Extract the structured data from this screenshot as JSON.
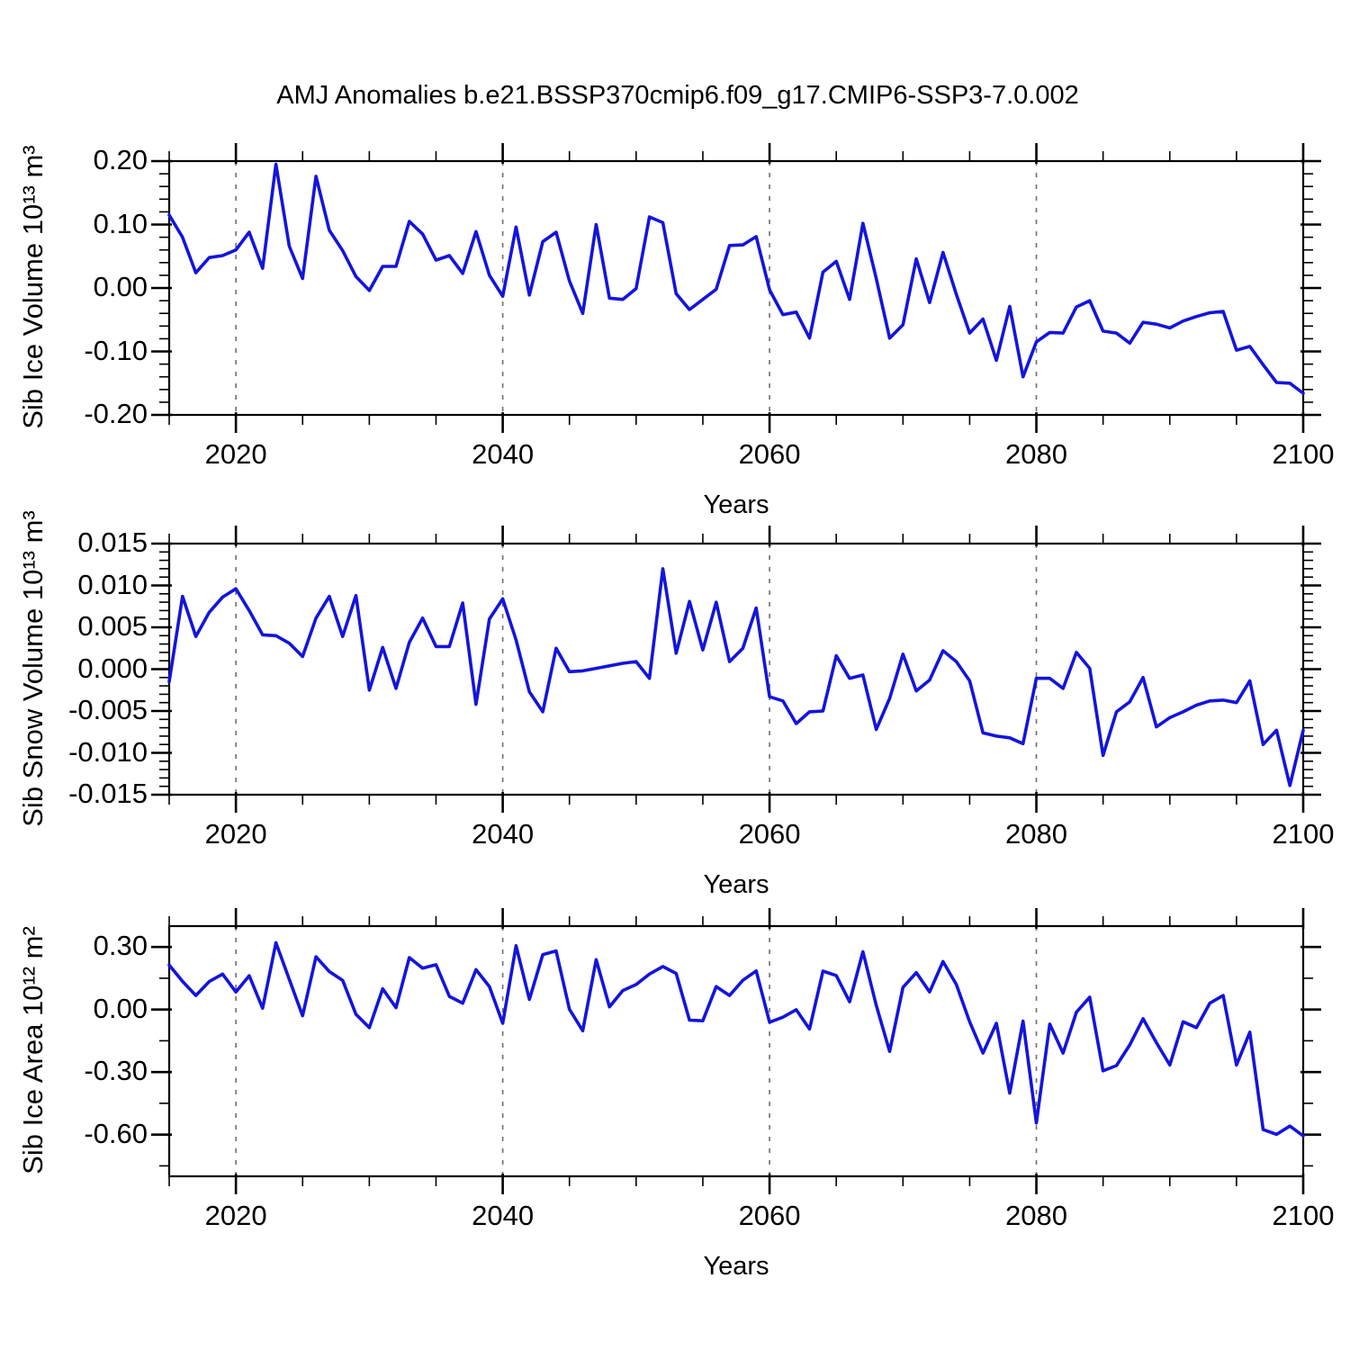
{
  "title": "AMJ Anomalies b.e21.BSSP370cmip6.f09_g17.CMIP6-SSP3-7.0.002",
  "colors": {
    "line": "#1414dd",
    "frame": "#000000",
    "gridline": "#6e6e6e",
    "background": "#ffffff"
  },
  "chart_data": [
    {
      "type": "line",
      "name": "sib-ice-volume-anomaly",
      "ylabel": "Sib Ice Volume 10¹³ m³",
      "xlabel": "Years",
      "x_start": 2015,
      "x_step": 1,
      "xlim": [
        2015,
        2100
      ],
      "ylim": [
        -0.2,
        0.2
      ],
      "x_ticks": [
        {
          "v": 2020,
          "label": "2020"
        },
        {
          "v": 2040,
          "label": "2040"
        },
        {
          "v": 2060,
          "label": "2060"
        },
        {
          "v": 2080,
          "label": "2080"
        },
        {
          "v": 2100,
          "label": "2100"
        }
      ],
      "x_minor_step": 5,
      "y_ticks": [
        {
          "v": 0.2,
          "label": "0.20"
        },
        {
          "v": 0.1,
          "label": "0.10"
        },
        {
          "v": 0.0,
          "label": "0.00"
        },
        {
          "v": -0.1,
          "label": "-0.10"
        },
        {
          "v": -0.2,
          "label": "-0.20"
        }
      ],
      "y_minor_step": 0.02,
      "grid_x": [
        2020,
        2040,
        2060,
        2080
      ],
      "grid_on": "vertical-dashed",
      "legend": "none",
      "values": [
        0.115,
        0.08,
        0.024,
        0.048,
        0.051,
        0.06,
        0.088,
        0.031,
        0.195,
        0.066,
        0.015,
        0.176,
        0.091,
        0.059,
        0.018,
        -0.004,
        0.034,
        0.034,
        0.105,
        0.085,
        0.044,
        0.051,
        0.023,
        0.089,
        0.02,
        -0.013,
        0.096,
        -0.011,
        0.073,
        0.088,
        0.011,
        -0.04,
        0.1,
        -0.016,
        -0.018,
        -0.001,
        0.112,
        0.103,
        -0.009,
        -0.034,
        -0.018,
        -0.002,
        0.067,
        0.068,
        0.081,
        -0.003,
        -0.042,
        -0.038,
        -0.079,
        0.025,
        0.042,
        -0.018,
        0.102,
        0.015,
        -0.079,
        -0.058,
        0.046,
        -0.023,
        0.056,
        -0.01,
        -0.071,
        -0.049,
        -0.114,
        -0.029,
        -0.14,
        -0.085,
        -0.07,
        -0.071,
        -0.03,
        -0.02,
        -0.068,
        -0.071,
        -0.087,
        -0.054,
        -0.057,
        -0.063,
        -0.052,
        -0.045,
        -0.039,
        -0.037,
        -0.098,
        -0.092,
        -0.121,
        -0.149,
        -0.15,
        -0.166
      ]
    },
    {
      "type": "line",
      "name": "sib-snow-volume-anomaly",
      "ylabel": "Sib Snow Volume 10¹³ m³",
      "xlabel": "Years",
      "x_start": 2015,
      "x_step": 1,
      "xlim": [
        2015,
        2100
      ],
      "ylim": [
        -0.015,
        0.015
      ],
      "x_ticks": [
        {
          "v": 2020,
          "label": "2020"
        },
        {
          "v": 2040,
          "label": "2040"
        },
        {
          "v": 2060,
          "label": "2060"
        },
        {
          "v": 2080,
          "label": "2080"
        },
        {
          "v": 2100,
          "label": "2100"
        }
      ],
      "x_minor_step": 5,
      "y_ticks": [
        {
          "v": 0.015,
          "label": "0.015"
        },
        {
          "v": 0.01,
          "label": "0.010"
        },
        {
          "v": 0.005,
          "label": "0.005"
        },
        {
          "v": 0.0,
          "label": "0.000"
        },
        {
          "v": -0.005,
          "label": "-0.005"
        },
        {
          "v": -0.01,
          "label": "-0.010"
        },
        {
          "v": -0.015,
          "label": "-0.015"
        }
      ],
      "y_minor_step": 0.001,
      "grid_x": [
        2020,
        2040,
        2060,
        2080
      ],
      "grid_on": "vertical-dashed",
      "legend": "none",
      "values": [
        -0.0015,
        0.0087,
        0.0039,
        0.0068,
        0.0086,
        0.0096,
        0.007,
        0.0041,
        0.004,
        0.0031,
        0.0015,
        0.0061,
        0.0087,
        0.0039,
        0.0088,
        -0.0025,
        0.0026,
        -0.0023,
        0.0032,
        0.0061,
        0.0027,
        0.0027,
        0.0079,
        -0.0042,
        0.006,
        0.0084,
        0.0035,
        -0.0027,
        -0.0051,
        0.0025,
        -0.0003,
        -0.0002,
        0.0001,
        0.0004,
        0.0007,
        0.0009,
        -0.0011,
        0.012,
        0.0019,
        0.0081,
        0.0023,
        0.008,
        0.0009,
        0.0025,
        0.0073,
        -0.0033,
        -0.0038,
        -0.0065,
        -0.0051,
        -0.005,
        0.0016,
        -0.0011,
        -0.0007,
        -0.0072,
        -0.0035,
        0.0018,
        -0.0026,
        -0.0013,
        0.0022,
        0.0009,
        -0.0014,
        -0.0076,
        -0.008,
        -0.0082,
        -0.0089,
        -0.0011,
        -0.0011,
        -0.0023,
        0.002,
        0.0001,
        -0.0103,
        -0.0051,
        -0.0039,
        -0.001,
        -0.0069,
        -0.0058,
        -0.0051,
        -0.0043,
        -0.0038,
        -0.0037,
        -0.004,
        -0.0014,
        -0.009,
        -0.0073,
        -0.0139,
        -0.0073
      ]
    },
    {
      "type": "line",
      "name": "sib-ice-area-anomaly",
      "ylabel": "Sib Ice Area 10¹² m²",
      "xlabel": "Years",
      "x_start": 2015,
      "x_step": 1,
      "xlim": [
        2015,
        2100
      ],
      "ylim": [
        -0.8,
        0.4
      ],
      "x_ticks": [
        {
          "v": 2020,
          "label": "2020"
        },
        {
          "v": 2040,
          "label": "2040"
        },
        {
          "v": 2060,
          "label": "2060"
        },
        {
          "v": 2080,
          "label": "2080"
        },
        {
          "v": 2100,
          "label": "2100"
        }
      ],
      "x_minor_step": 5,
      "y_ticks": [
        {
          "v": 0.3,
          "label": "0.30"
        },
        {
          "v": 0.0,
          "label": "0.00"
        },
        {
          "v": -0.3,
          "label": "-0.30"
        },
        {
          "v": -0.6,
          "label": "-0.60"
        }
      ],
      "y_minor_step": 0.15,
      "grid_x": [
        2020,
        2040,
        2060,
        2080
      ],
      "grid_on": "vertical-dashed",
      "legend": "none",
      "values": [
        0.213,
        0.135,
        0.067,
        0.134,
        0.17,
        0.084,
        0.162,
        0.006,
        0.32,
        0.145,
        -0.03,
        0.253,
        0.182,
        0.14,
        -0.023,
        -0.087,
        0.099,
        0.009,
        0.249,
        0.198,
        0.215,
        0.063,
        0.03,
        0.191,
        0.11,
        -0.066,
        0.306,
        0.048,
        0.263,
        0.281,
        0.001,
        -0.102,
        0.239,
        0.013,
        0.091,
        0.12,
        0.17,
        0.206,
        0.173,
        -0.051,
        -0.054,
        0.11,
        0.067,
        0.14,
        0.185,
        -0.061,
        -0.037,
        -0.001,
        -0.094,
        0.184,
        0.163,
        0.037,
        0.277,
        0.02,
        -0.201,
        0.106,
        0.177,
        0.084,
        0.23,
        0.12,
        -0.059,
        -0.209,
        -0.066,
        -0.401,
        -0.056,
        -0.544,
        -0.07,
        -0.209,
        -0.013,
        0.059,
        -0.294,
        -0.269,
        -0.17,
        -0.044,
        -0.159,
        -0.266,
        -0.059,
        -0.087,
        0.03,
        0.067,
        -0.266,
        -0.109,
        -0.576,
        -0.599,
        -0.559,
        -0.606
      ]
    }
  ]
}
